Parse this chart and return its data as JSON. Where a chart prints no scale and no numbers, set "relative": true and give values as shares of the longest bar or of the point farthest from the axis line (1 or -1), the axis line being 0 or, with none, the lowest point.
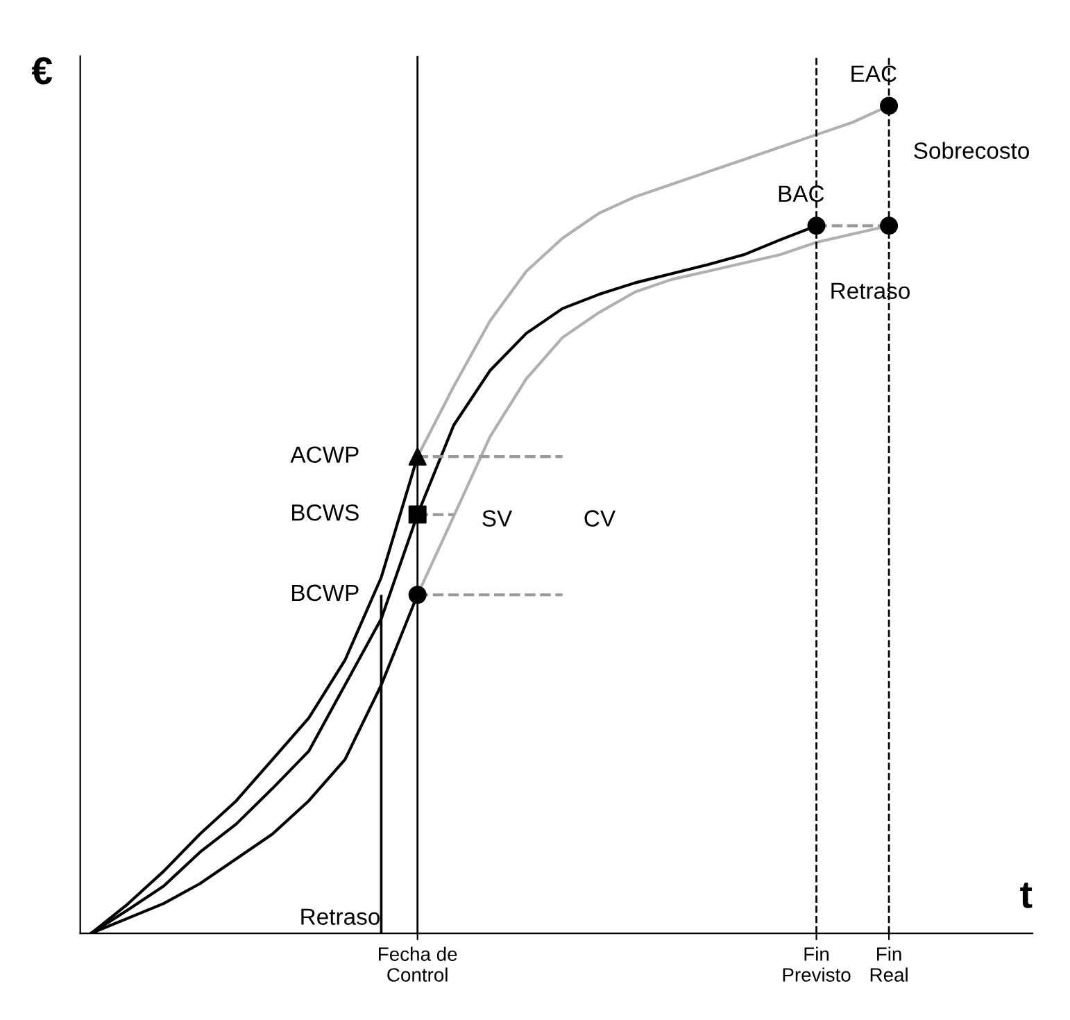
{
  "chart_data": {
    "type": "line",
    "relative": true,
    "xlabel": "t",
    "ylabel": "€",
    "categories": [
      null,
      null,
      null,
      null,
      null,
      null,
      null,
      null,
      null,
      "Fecha de\nControl",
      null,
      null,
      null,
      null,
      null,
      null,
      null,
      null,
      null,
      null,
      "Fin\nPrevisto",
      null,
      "Fin\nReal"
    ],
    "tick_labels": "x",
    "grid": false,
    "legend": false,
    "series": [
      {
        "color": "#000000",
        "line_style": "solid",
        "values": [
          0,
          0.035,
          0.075,
          0.12,
          0.16,
          0.21,
          0.26,
          0.33,
          0.43,
          0.576,
          null,
          null,
          null,
          null,
          null,
          null,
          null,
          null,
          null,
          null,
          null,
          null,
          null
        ]
      },
      {
        "color": "#b0b0b0",
        "line_style": "solid",
        "values": [
          null,
          null,
          null,
          null,
          null,
          null,
          null,
          null,
          null,
          0.576,
          0.661,
          0.74,
          0.8,
          0.84,
          0.87,
          0.89,
          0.905,
          0.92,
          0.935,
          0.95,
          0.965,
          0.98,
          1.0
        ]
      },
      {
        "color": "#000000",
        "line_style": "solid",
        "values": [
          0,
          0.018,
          0.036,
          0.06,
          0.09,
          0.12,
          0.16,
          0.21,
          0.3,
          0.409,
          null,
          null,
          null,
          null,
          null,
          null,
          null,
          null,
          null,
          null,
          null,
          null,
          null
        ]
      },
      {
        "color": "#b0b0b0",
        "line_style": "solid",
        "values": [
          null,
          null,
          null,
          null,
          null,
          null,
          null,
          null,
          null,
          0.409,
          0.504,
          0.6,
          0.67,
          0.72,
          0.75,
          0.775,
          0.79,
          0.8,
          0.81,
          0.82,
          0.835,
          0.845,
          0.855
        ]
      },
      {
        "color": "#000000",
        "line_style": "solid",
        "values": [
          0,
          0.028,
          0.057,
          0.098,
          0.132,
          0.175,
          0.22,
          0.3,
          0.38,
          0.506,
          0.614,
          0.68,
          0.725,
          0.755,
          0.772,
          0.786,
          0.797,
          0.808,
          0.82,
          0.838,
          0.855,
          null,
          null
        ]
      },
      {
        "color": "#999999",
        "line_style": "dashed",
        "values": [
          null,
          null,
          null,
          null,
          null,
          null,
          null,
          null,
          null,
          0.576,
          0.576,
          0.576,
          0.576,
          0.576,
          null,
          null,
          null,
          null,
          null,
          null,
          null,
          null,
          null
        ]
      },
      {
        "color": "#999999",
        "line_style": "dashed",
        "values": [
          null,
          null,
          null,
          null,
          null,
          null,
          null,
          null,
          null,
          0.506,
          0.506,
          null,
          null,
          null,
          null,
          null,
          null,
          null,
          null,
          null,
          null,
          null,
          null
        ]
      },
      {
        "color": "#999999",
        "line_style": "dashed",
        "values": [
          null,
          null,
          null,
          null,
          null,
          null,
          null,
          null,
          null,
          0.409,
          0.409,
          0.409,
          0.409,
          0.409,
          null,
          null,
          null,
          null,
          null,
          null,
          null,
          null,
          null
        ]
      },
      {
        "color": "#999999",
        "line_style": "dashed",
        "values": [
          null,
          null,
          null,
          null,
          null,
          null,
          null,
          null,
          null,
          null,
          null,
          null,
          null,
          null,
          null,
          null,
          null,
          null,
          null,
          null,
          0.855,
          0.855,
          0.855
        ]
      },
      {
        "type": "bar",
        "color": "#000000",
        "values": [
          null,
          null,
          null,
          null,
          null,
          null,
          null,
          null,
          0.409,
          null,
          null,
          null,
          null,
          null,
          null,
          null,
          null,
          null,
          null,
          null,
          null,
          null,
          null
        ]
      },
      {
        "type": "scatter",
        "color": "#000000",
        "marker": "triangle",
        "values": [
          null,
          null,
          null,
          null,
          null,
          null,
          null,
          null,
          null,
          0.576,
          null,
          null,
          null,
          null,
          null,
          null,
          null,
          null,
          null,
          null,
          null,
          null,
          null
        ]
      },
      {
        "type": "scatter",
        "color": "#000000",
        "marker": "square",
        "values": [
          null,
          null,
          null,
          null,
          null,
          null,
          null,
          null,
          null,
          0.506,
          null,
          null,
          null,
          null,
          null,
          null,
          null,
          null,
          null,
          null,
          null,
          null,
          null
        ]
      },
      {
        "type": "scatter",
        "color": "#000000",
        "marker": "circle",
        "values": [
          null,
          null,
          null,
          null,
          null,
          null,
          null,
          null,
          null,
          0.409,
          null,
          null,
          null,
          null,
          null,
          null,
          null,
          null,
          null,
          null,
          0.855,
          null,
          0.855
        ]
      },
      {
        "type": "scatter",
        "color": "#000000",
        "marker": "circle",
        "values": [
          null,
          null,
          null,
          null,
          null,
          null,
          null,
          null,
          null,
          null,
          null,
          null,
          null,
          null,
          null,
          null,
          null,
          null,
          null,
          null,
          null,
          null,
          1.0
        ]
      }
    ],
    "ref_lines": [
      {
        "axis": "x",
        "value": "Fecha de\nControl",
        "color": "#000000",
        "line_style": "solid"
      },
      {
        "axis": "x",
        "value": "Fin\nPrevisto",
        "color": "#000000",
        "line_style": "dashed"
      },
      {
        "axis": "x",
        "value": "Fin\nReal",
        "color": "#000000",
        "line_style": "dashed"
      }
    ],
    "annotations": [
      {
        "text": "ACWP",
        "x": "Fecha de\nControl",
        "y": 0.576
      },
      {
        "text": "BCWS",
        "x": "Fecha de\nControl",
        "y": 0.506
      },
      {
        "text": "BCWP",
        "x": "Fecha de\nControl",
        "y": 0.409
      },
      {
        "text": "BAC",
        "x": "Fin\nPrevisto",
        "y": 0.855
      },
      {
        "text": "EAC",
        "x": "Fin\nReal",
        "y": 1.0
      },
      "CV",
      "SV",
      "Sobrecosto",
      "Retraso",
      "Retraso"
    ]
  }
}
